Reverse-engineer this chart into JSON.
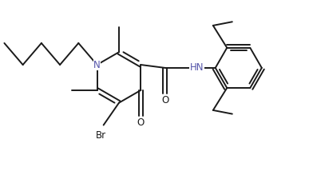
{
  "bg_color": "#ffffff",
  "line_color": "#1a1a1a",
  "text_color": "#1a1a1a",
  "N_color": "#5555aa",
  "HN_color": "#5555aa",
  "line_width": 1.4,
  "figsize": [
    3.87,
    2.19
  ],
  "dpi": 100,
  "xlim": [
    0,
    10
  ],
  "ylim": [
    0,
    5.65
  ]
}
